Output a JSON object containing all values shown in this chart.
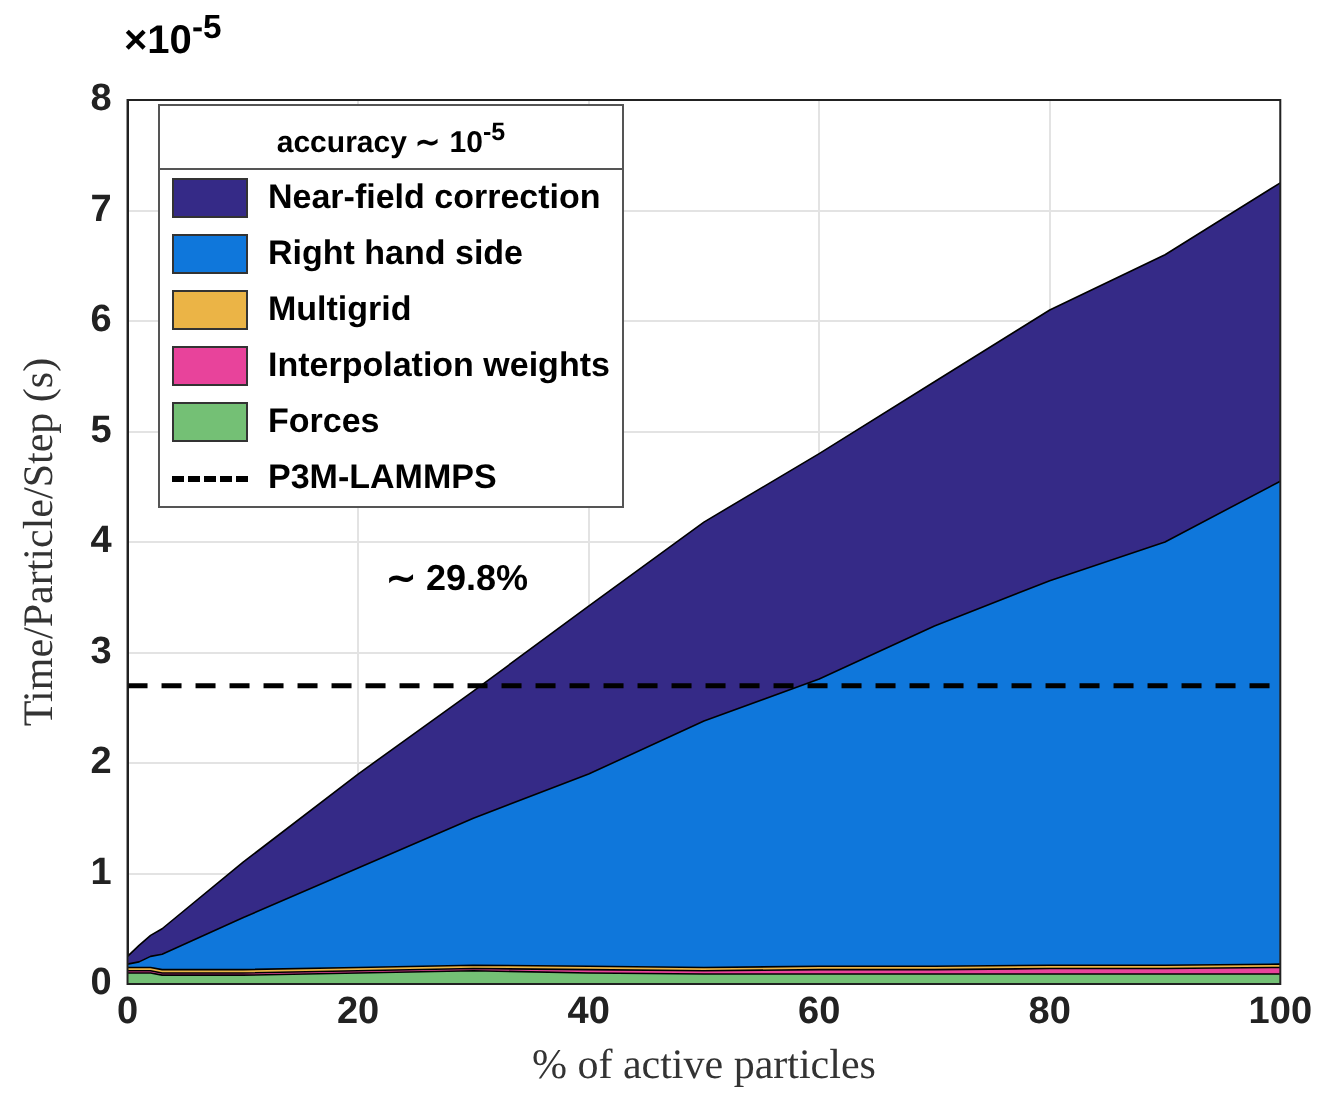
{
  "chart_data": {
    "type": "area",
    "stacked": true,
    "xlabel": "% of active particles",
    "ylabel": "Time/Particle/Step (s)",
    "legend_title": "accuracy ∼ 10$^{-5}$",
    "legend": "top left",
    "grid": true,
    "x": [
      0,
      1,
      2,
      3,
      10,
      20,
      30,
      40,
      50,
      60,
      70,
      80,
      90,
      100
    ],
    "xlim": [
      0,
      100
    ],
    "xticks": [
      0,
      20,
      40,
      60,
      80,
      100
    ],
    "ylim": [
      0,
      8
    ],
    "yticks": [
      0,
      1,
      2,
      3,
      4,
      5,
      6,
      7,
      8
    ],
    "series": [
      {
        "name": "Forces",
        "color": "#74c075",
        "values": [
          0.1,
          0.1,
          0.1,
          0.08,
          0.08,
          0.1,
          0.12,
          0.1,
          0.09,
          0.09,
          0.09,
          0.09,
          0.09,
          0.09
        ]
      },
      {
        "name": "Interpolation weights",
        "color": "#e8439b",
        "values": [
          0.02,
          0.02,
          0.02,
          0.02,
          0.02,
          0.02,
          0.02,
          0.03,
          0.03,
          0.04,
          0.04,
          0.05,
          0.05,
          0.06
        ]
      },
      {
        "name": "Multigrid",
        "color": "#ebb446",
        "values": [
          0.03,
          0.03,
          0.03,
          0.03,
          0.03,
          0.03,
          0.03,
          0.03,
          0.03,
          0.03,
          0.03,
          0.03,
          0.03,
          0.03
        ]
      },
      {
        "name": "Right hand side",
        "color": "#0f77db",
        "values": [
          0.03,
          0.05,
          0.1,
          0.14,
          0.47,
          0.9,
          1.33,
          1.74,
          2.23,
          2.6,
          3.08,
          3.48,
          3.83,
          4.37
        ]
      },
      {
        "name": "Near-field correction",
        "color": "#352a87",
        "values": [
          0.07,
          0.15,
          0.19,
          0.23,
          0.5,
          0.85,
          1.15,
          1.52,
          1.8,
          2.04,
          2.21,
          2.45,
          2.6,
          2.7
        ]
      }
    ],
    "ref_lines": [
      {
        "axis": "y",
        "value": 2.7,
        "label": "P3M-LAMMPS",
        "color": "#000000",
        "line_style": "dashed"
      }
    ],
    "annotations": [
      "×10$^{-5}$",
      "∼ 29.8%"
    ]
  }
}
